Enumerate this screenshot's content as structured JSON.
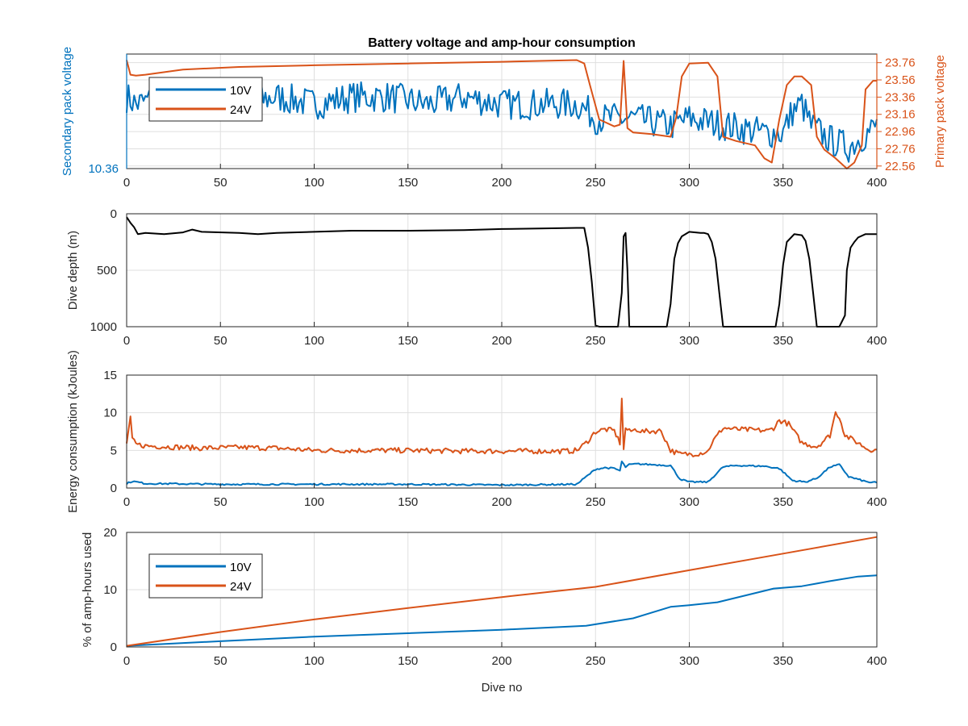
{
  "figure": {
    "title": "Battery voltage and amp-hour consumption",
    "xlabel": "Dive no"
  },
  "colors": {
    "v10": "#0072BD",
    "v24": "#D95319",
    "depth": "#000000",
    "axis": "#262626",
    "grid": "#dfdfdf"
  },
  "chart_data": [
    {
      "type": "line",
      "title": "Battery voltage and amp-hour consumption",
      "xlim": [
        0,
        400
      ],
      "x_ticks": [
        0,
        50,
        100,
        150,
        200,
        250,
        300,
        350,
        400
      ],
      "ylabel": "Secondary pack voltage",
      "ylabel_right": "Primary pack voltage",
      "y_ticks": [
        "10.36"
      ],
      "y2_ticks": [
        "22.56",
        "22.76",
        "22.96",
        "23.16",
        "23.36",
        "23.56",
        "23.76"
      ],
      "ylim": [
        10.36,
        10.52
      ],
      "y2lim": [
        22.53,
        23.86
      ],
      "grid": true,
      "legend": {
        "placement": "top-left",
        "entries": [
          "10V",
          "24V"
        ]
      },
      "series": [
        {
          "name": "10V",
          "axis": "left",
          "color": "#0072BD",
          "noisy": true,
          "x": [
            0,
            5,
            20,
            40,
            60,
            80,
            100,
            120,
            140,
            160,
            180,
            200,
            220,
            240,
            246,
            250,
            270,
            290,
            300,
            320,
            340,
            350,
            355,
            360,
            365,
            375,
            385,
            395,
            400
          ],
          "y": [
            10.46,
            10.45,
            10.46,
            10.46,
            10.45,
            10.46,
            10.45,
            10.46,
            10.46,
            10.45,
            10.46,
            10.45,
            10.45,
            10.45,
            10.44,
            10.43,
            10.43,
            10.42,
            10.43,
            10.42,
            10.41,
            10.41,
            10.44,
            10.45,
            10.42,
            10.4,
            10.39,
            10.41,
            10.42
          ]
        },
        {
          "name": "24V",
          "axis": "right",
          "color": "#D95319",
          "noisy": false,
          "x": [
            0,
            2,
            5,
            10,
            30,
            60,
            100,
            150,
            200,
            240,
            244,
            247,
            252,
            260,
            263,
            265,
            267,
            270,
            280,
            290,
            293,
            296,
            300,
            310,
            315,
            318,
            325,
            335,
            340,
            344,
            348,
            352,
            356,
            360,
            365,
            368,
            372,
            378,
            384,
            388,
            392,
            394,
            398,
            400
          ],
          "y": [
            23.79,
            23.62,
            23.61,
            23.62,
            23.68,
            23.71,
            23.73,
            23.75,
            23.77,
            23.79,
            23.75,
            23.5,
            23.1,
            23.02,
            23.04,
            23.78,
            23.0,
            22.95,
            22.93,
            22.9,
            23.12,
            23.6,
            23.75,
            23.76,
            23.6,
            22.9,
            22.85,
            22.8,
            22.65,
            22.6,
            23.1,
            23.5,
            23.6,
            23.6,
            23.5,
            22.9,
            22.75,
            22.65,
            22.53,
            22.6,
            22.8,
            23.45,
            23.55,
            23.55
          ]
        }
      ]
    },
    {
      "type": "line",
      "xlim": [
        0,
        400
      ],
      "x_ticks": [
        0,
        50,
        100,
        150,
        200,
        250,
        300,
        350,
        400
      ],
      "ylabel": "Dive depth (m)",
      "y_ticks": [
        0,
        500,
        1000
      ],
      "ylim": [
        1000,
        0
      ],
      "reversed_y": true,
      "grid": true,
      "series": [
        {
          "color": "#000000",
          "noisy": false,
          "x": [
            0,
            2,
            4,
            6,
            10,
            20,
            30,
            35,
            40,
            60,
            70,
            80,
            100,
            120,
            150,
            180,
            200,
            220,
            240,
            244,
            246,
            248,
            250,
            252,
            262,
            264,
            265,
            266,
            267,
            268,
            270,
            288,
            290,
            292,
            294,
            296,
            300,
            306,
            308,
            310,
            312,
            314,
            316,
            318,
            340,
            346,
            348,
            350,
            352,
            356,
            360,
            362,
            364,
            366,
            368,
            370,
            372,
            380,
            383,
            384,
            386,
            388,
            390,
            394,
            398,
            400
          ],
          "y": [
            30,
            80,
            120,
            180,
            170,
            180,
            165,
            140,
            160,
            170,
            180,
            170,
            160,
            150,
            150,
            145,
            135,
            130,
            125,
            125,
            300,
            600,
            990,
            1000,
            1000,
            700,
            200,
            170,
            500,
            1000,
            1000,
            1000,
            800,
            400,
            260,
            200,
            160,
            170,
            170,
            180,
            250,
            400,
            700,
            1000,
            1000,
            1000,
            800,
            450,
            250,
            180,
            190,
            240,
            400,
            700,
            1000,
            1000,
            1000,
            1000,
            900,
            500,
            300,
            250,
            210,
            180,
            180,
            180
          ]
        }
      ]
    },
    {
      "type": "line",
      "xlim": [
        0,
        400
      ],
      "x_ticks": [
        0,
        50,
        100,
        150,
        200,
        250,
        300,
        350,
        400
      ],
      "ylabel": "Energy consumption (kJoules)",
      "y_ticks": [
        0,
        5,
        10,
        15
      ],
      "ylim": [
        0,
        15
      ],
      "grid": true,
      "series": [
        {
          "name": "24V",
          "color": "#D95319",
          "noisy": true,
          "x": [
            0,
            2,
            3,
            5,
            10,
            20,
            30,
            40,
            60,
            80,
            100,
            120,
            150,
            180,
            200,
            220,
            235,
            240,
            245,
            250,
            255,
            260,
            263,
            264,
            265,
            266,
            268,
            272,
            275,
            285,
            290,
            295,
            300,
            305,
            310,
            312,
            318,
            325,
            335,
            342,
            345,
            348,
            353,
            360,
            368,
            375,
            378,
            380,
            383,
            390,
            395,
            400
          ],
          "y": [
            6.0,
            9.2,
            6.5,
            5.8,
            5.6,
            5.5,
            5.4,
            5.3,
            5.4,
            5.3,
            5.0,
            5.0,
            5.0,
            4.9,
            4.9,
            4.9,
            4.9,
            5.0,
            6.0,
            7.5,
            7.8,
            7.6,
            6.0,
            12.0,
            5.0,
            8.0,
            7.5,
            7.8,
            7.5,
            7.6,
            5.0,
            4.5,
            4.5,
            4.6,
            4.9,
            6.0,
            8.0,
            7.8,
            7.7,
            7.6,
            8.0,
            9.0,
            8.5,
            6.0,
            5.5,
            7.0,
            10.0,
            9.5,
            7.0,
            6.0,
            5.2,
            5.0
          ]
        },
        {
          "name": "10V",
          "color": "#0072BD",
          "noisy": true,
          "x": [
            0,
            3,
            10,
            50,
            100,
            150,
            200,
            240,
            245,
            250,
            255,
            260,
            263,
            264,
            266,
            268,
            272,
            290,
            295,
            300,
            310,
            318,
            325,
            340,
            348,
            355,
            362,
            368,
            375,
            380,
            385,
            395,
            400
          ],
          "y": [
            0.6,
            0.9,
            0.6,
            0.5,
            0.5,
            0.5,
            0.4,
            0.5,
            1.5,
            2.5,
            2.7,
            2.6,
            2.3,
            3.5,
            2.8,
            3.1,
            3.2,
            3.0,
            1.2,
            0.8,
            0.8,
            2.8,
            3.0,
            2.9,
            2.6,
            1.0,
            0.8,
            1.3,
            2.8,
            3.1,
            1.5,
            0.8,
            0.7
          ]
        }
      ]
    },
    {
      "type": "line",
      "xlim": [
        0,
        400
      ],
      "x_ticks": [
        0,
        50,
        100,
        150,
        200,
        250,
        300,
        350,
        400
      ],
      "xlabel": "Dive no",
      "ylabel": "% of amp-hours used",
      "y_ticks": [
        0,
        10,
        20
      ],
      "ylim": [
        0,
        20
      ],
      "grid": true,
      "legend": {
        "placement": "top-left",
        "entries": [
          "10V",
          "24V"
        ]
      },
      "series": [
        {
          "name": "10V",
          "color": "#0072BD",
          "noisy": false,
          "x": [
            0,
            50,
            100,
            150,
            200,
            245,
            270,
            290,
            300,
            315,
            330,
            345,
            360,
            375,
            390,
            400
          ],
          "y": [
            0.2,
            1.0,
            1.8,
            2.4,
            3.0,
            3.7,
            5.0,
            7.0,
            7.3,
            7.8,
            9.0,
            10.2,
            10.6,
            11.5,
            12.3,
            12.5
          ]
        },
        {
          "name": "24V",
          "color": "#D95319",
          "noisy": false,
          "x": [
            0,
            50,
            100,
            150,
            200,
            250,
            300,
            350,
            400
          ],
          "y": [
            0.2,
            2.6,
            4.8,
            6.8,
            8.7,
            10.5,
            13.4,
            16.3,
            19.2
          ]
        }
      ]
    }
  ]
}
